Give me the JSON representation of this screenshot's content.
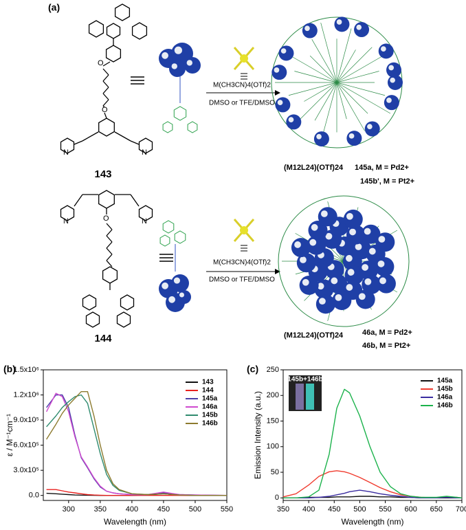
{
  "scheme": {
    "panel_label": "(a)",
    "reagent_top": "M(CH3CN)4(OTf)2",
    "solvent_top": "DMSO or TFE/DMSO",
    "reagent_bottom": "M(CH3CN)4(OTf)2",
    "solvent_bottom": "DMSO or TFE/DMSO",
    "compound_143": "143",
    "compound_144": "144",
    "atoms_143": [
      "O",
      "O",
      "N",
      "N"
    ],
    "atoms_144": [
      "O",
      "N",
      "N"
    ],
    "cage_top_formula": "(M12L24)(OTf)24",
    "cage_top_line1": "145a, M = Pd2+",
    "cage_top_line2": "145b', M = Pt2+",
    "cage_bottom_formula": "(M12L24)(OTf)24",
    "cage_bottom_line1": "46a, M = Pd2+",
    "cage_bottom_line2": "46b, M = Pt2+"
  },
  "chart_data": [
    {
      "type": "line",
      "panel_label": "(b)",
      "x_label": "Wavelength (nm)",
      "y_label": "ε / M⁻¹cm⁻¹",
      "xlim": [
        260,
        550
      ],
      "xticks": [
        300,
        350,
        400,
        450,
        500,
        550
      ],
      "ylim": [
        -60000,
        1500000
      ],
      "yticks": [
        {
          "value": 0,
          "label": "0.0"
        },
        {
          "value": 300000,
          "label": "3.0x10⁵"
        },
        {
          "value": 600000,
          "label": "6.0x10⁵"
        },
        {
          "value": 900000,
          "label": "9.0x10⁵"
        },
        {
          "value": 1200000,
          "label": "1.2x10⁶"
        },
        {
          "value": 1500000,
          "label": "1.5x10⁶"
        }
      ],
      "legend": "top-right",
      "x": [
        265,
        280,
        290,
        300,
        310,
        320,
        330,
        340,
        350,
        360,
        370,
        380,
        400,
        425,
        450,
        475,
        500,
        550
      ],
      "series": [
        {
          "name": "143",
          "color": "#111111",
          "values": [
            25000,
            20000,
            15000,
            10000,
            5000,
            3000,
            2000,
            1000,
            0,
            0,
            0,
            0,
            0,
            5000,
            20000,
            3000,
            0,
            0
          ]
        },
        {
          "name": "144",
          "color": "#e8221f",
          "values": [
            70000,
            70000,
            55000,
            40000,
            30000,
            20000,
            10000,
            5000,
            2000,
            0,
            0,
            0,
            0,
            0,
            0,
            0,
            0,
            0
          ]
        },
        {
          "name": "145a",
          "color": "#4b3fa8",
          "values": [
            1050000,
            1200000,
            1200000,
            1050000,
            720000,
            450000,
            330000,
            200000,
            100000,
            50000,
            30000,
            20000,
            10000,
            10000,
            30000,
            10000,
            5000,
            0
          ]
        },
        {
          "name": "146a",
          "color": "#cf48cf",
          "values": [
            1000000,
            1220000,
            1180000,
            1000000,
            700000,
            460000,
            340000,
            210000,
            110000,
            50000,
            30000,
            20000,
            10000,
            10000,
            40000,
            10000,
            5000,
            0
          ]
        },
        {
          "name": "145b",
          "color": "#2e8b6e",
          "values": [
            820000,
            950000,
            1050000,
            1120000,
            1180000,
            1200000,
            1100000,
            800000,
            500000,
            250000,
            120000,
            60000,
            20000,
            10000,
            20000,
            5000,
            0,
            0
          ]
        },
        {
          "name": "146b",
          "color": "#8c7a2e",
          "values": [
            670000,
            850000,
            980000,
            1080000,
            1160000,
            1240000,
            1240000,
            950000,
            600000,
            300000,
            140000,
            70000,
            20000,
            10000,
            20000,
            5000,
            0,
            0
          ]
        }
      ]
    },
    {
      "type": "line",
      "panel_label": "(c)",
      "x_label": "Wavelength (nm)",
      "y_label": "Emission Intensity (a.u.)",
      "inset_label": "145b+146b",
      "xlim": [
        350,
        700
      ],
      "xticks": [
        350,
        400,
        450,
        500,
        550,
        600,
        650,
        700
      ],
      "ylim": [
        -5,
        250
      ],
      "yticks": [
        0,
        50,
        100,
        150,
        200,
        250
      ],
      "legend": "top-right",
      "x": [
        350,
        375,
        400,
        420,
        440,
        455,
        470,
        480,
        500,
        520,
        540,
        560,
        580,
        600,
        620,
        650,
        670,
        690,
        700
      ],
      "series": [
        {
          "name": "145a",
          "color": "#111111",
          "values": [
            0,
            0,
            1,
            1,
            1,
            2,
            2,
            2,
            3,
            3,
            2,
            2,
            1,
            1,
            0,
            0,
            0,
            0,
            0
          ]
        },
        {
          "name": "145b",
          "color": "#f03b2e",
          "values": [
            2,
            8,
            25,
            42,
            51,
            53,
            51,
            48,
            40,
            30,
            20,
            12,
            6,
            3,
            1,
            0,
            2,
            1,
            0
          ]
        },
        {
          "name": "146a",
          "color": "#3a2ca0",
          "values": [
            0,
            0,
            0,
            1,
            3,
            6,
            9,
            12,
            15,
            12,
            8,
            5,
            3,
            1,
            0,
            0,
            1,
            0,
            0
          ]
        },
        {
          "name": "146b",
          "color": "#1bb24b",
          "values": [
            0,
            0,
            2,
            15,
            85,
            175,
            212,
            205,
            160,
            100,
            50,
            22,
            8,
            3,
            1,
            1,
            3,
            1,
            0
          ]
        }
      ]
    }
  ]
}
